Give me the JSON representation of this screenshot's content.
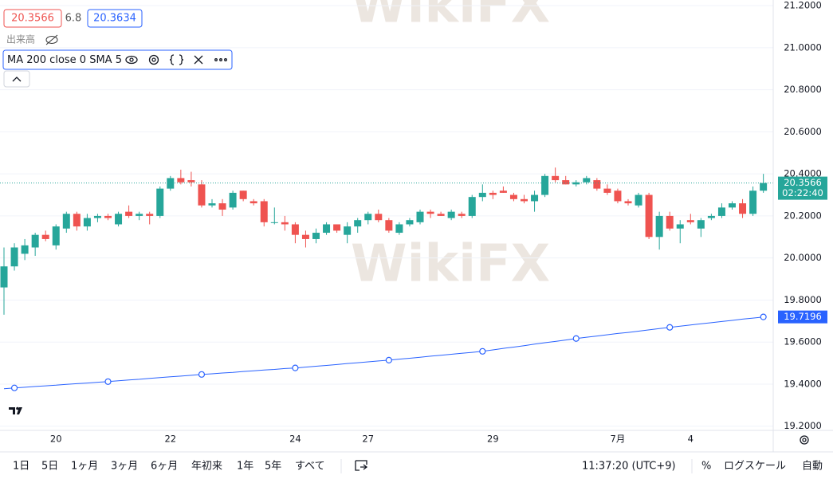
{
  "header": {
    "bid": "20.3566",
    "spread": "6.8",
    "ask": "20.3634",
    "volume": "出来高"
  },
  "chart_data": {
    "type": "candlestick",
    "categories": [
      null,
      null,
      null,
      null,
      null,
      "20",
      null,
      null,
      null,
      null,
      null,
      null,
      null,
      null,
      null,
      null,
      "22",
      null,
      null,
      null,
      null,
      null,
      null,
      null,
      null,
      null,
      null,
      null,
      "24",
      null,
      null,
      null,
      null,
      null,
      null,
      "27",
      null,
      null,
      null,
      null,
      null,
      null,
      null,
      null,
      null,
      null,
      null,
      "29",
      null,
      null,
      null,
      null,
      null,
      null,
      null,
      null,
      null,
      null,
      null,
      "7月",
      null,
      null,
      null,
      null,
      null,
      null,
      "4",
      null,
      null,
      null,
      null,
      null,
      null,
      null
    ],
    "ohlc": [
      [
        19.86,
        20.05,
        19.73,
        19.96
      ],
      [
        19.96,
        20.07,
        19.94,
        20.05
      ],
      [
        20.02,
        20.09,
        19.99,
        20.06
      ],
      [
        20.05,
        20.12,
        20.01,
        20.11
      ],
      [
        20.11,
        20.13,
        20.08,
        20.09
      ],
      [
        20.06,
        20.16,
        20.04,
        20.15
      ],
      [
        20.14,
        20.22,
        20.12,
        20.21
      ],
      [
        20.21,
        20.22,
        20.13,
        20.15
      ],
      [
        20.15,
        20.21,
        20.13,
        20.19
      ],
      [
        20.19,
        20.21,
        20.17,
        20.2
      ],
      [
        20.2,
        20.21,
        20.18,
        20.19
      ],
      [
        20.16,
        20.22,
        20.15,
        20.21
      ],
      [
        20.22,
        20.25,
        20.19,
        20.2
      ],
      [
        20.2,
        20.22,
        20.18,
        20.21
      ],
      [
        20.21,
        20.22,
        20.16,
        20.2
      ],
      [
        20.2,
        20.34,
        20.19,
        20.33
      ],
      [
        20.33,
        20.39,
        20.32,
        20.38
      ],
      [
        20.38,
        20.42,
        20.35,
        20.36
      ],
      [
        20.37,
        20.41,
        20.34,
        20.36
      ],
      [
        20.35,
        20.37,
        20.24,
        20.25
      ],
      [
        20.25,
        20.28,
        20.24,
        20.26
      ],
      [
        20.26,
        20.28,
        20.2,
        20.23
      ],
      [
        20.24,
        20.32,
        20.23,
        20.31
      ],
      [
        20.32,
        20.32,
        20.27,
        20.28
      ],
      [
        20.27,
        20.28,
        20.25,
        20.26
      ],
      [
        20.27,
        20.28,
        20.15,
        20.17
      ],
      [
        20.17,
        20.24,
        20.16,
        20.17
      ],
      [
        20.17,
        20.2,
        20.13,
        20.16
      ],
      [
        20.16,
        20.17,
        20.07,
        20.11
      ],
      [
        20.11,
        20.13,
        20.05,
        20.09
      ],
      [
        20.09,
        20.14,
        20.07,
        20.12
      ],
      [
        20.12,
        20.17,
        20.11,
        20.16
      ],
      [
        20.16,
        20.16,
        20.12,
        20.13
      ],
      [
        20.11,
        20.17,
        20.07,
        20.15
      ],
      [
        20.15,
        20.19,
        20.12,
        20.18
      ],
      [
        20.18,
        20.22,
        20.16,
        20.21
      ],
      [
        20.21,
        20.23,
        20.17,
        20.18
      ],
      [
        20.18,
        20.19,
        20.12,
        20.13
      ],
      [
        20.12,
        20.17,
        20.11,
        20.16
      ],
      [
        20.16,
        20.19,
        20.15,
        20.18
      ],
      [
        20.17,
        20.23,
        20.16,
        20.22
      ],
      [
        20.22,
        20.23,
        20.19,
        20.21
      ],
      [
        20.21,
        20.22,
        20.2,
        20.2
      ],
      [
        20.19,
        20.23,
        20.18,
        20.22
      ],
      [
        20.21,
        20.22,
        20.19,
        20.2
      ],
      [
        20.2,
        20.3,
        20.19,
        20.29
      ],
      [
        20.29,
        20.35,
        20.27,
        20.31
      ],
      [
        20.31,
        20.32,
        20.28,
        20.3
      ],
      [
        20.32,
        20.34,
        20.31,
        20.31
      ],
      [
        20.3,
        20.31,
        20.27,
        20.28
      ],
      [
        20.28,
        20.3,
        20.26,
        20.27
      ],
      [
        20.27,
        20.32,
        20.22,
        20.3
      ],
      [
        20.3,
        20.4,
        20.29,
        20.39
      ],
      [
        20.39,
        20.43,
        20.36,
        20.37
      ],
      [
        20.37,
        20.39,
        20.35,
        20.35
      ],
      [
        20.35,
        20.37,
        20.34,
        20.36
      ],
      [
        20.36,
        20.39,
        20.35,
        20.38
      ],
      [
        20.37,
        20.38,
        20.32,
        20.33
      ],
      [
        20.33,
        20.35,
        20.3,
        20.31
      ],
      [
        20.32,
        20.33,
        20.26,
        20.27
      ],
      [
        20.27,
        20.28,
        20.25,
        20.26
      ],
      [
        20.25,
        20.31,
        20.24,
        20.3
      ],
      [
        20.3,
        20.31,
        20.09,
        20.1
      ],
      [
        20.1,
        20.22,
        20.04,
        20.2
      ],
      [
        20.2,
        20.22,
        20.13,
        20.14
      ],
      [
        20.14,
        20.18,
        20.07,
        20.16
      ],
      [
        20.18,
        20.21,
        20.16,
        20.17
      ],
      [
        20.14,
        20.19,
        20.1,
        20.18
      ],
      [
        20.19,
        20.21,
        20.18,
        20.2
      ],
      [
        20.2,
        20.26,
        20.19,
        20.24
      ],
      [
        20.24,
        20.27,
        20.23,
        20.26
      ],
      [
        20.26,
        20.28,
        20.19,
        20.21
      ],
      [
        20.21,
        20.34,
        20.2,
        20.32
      ],
      [
        20.32,
        20.4,
        20.31,
        20.3566
      ]
    ],
    "up_color": "#26a69a",
    "down_color": "#ef5350",
    "ma": {
      "name": "MA 200 close 0 SMA 5",
      "color": "#2962ff",
      "values": [
        19.378,
        19.382,
        19.385,
        19.389,
        19.392,
        19.395,
        19.399,
        19.402,
        19.405,
        19.409,
        19.412,
        19.416,
        19.42,
        19.423,
        19.427,
        19.431,
        19.435,
        19.438,
        19.442,
        19.446,
        19.449,
        19.453,
        19.456,
        19.46,
        19.463,
        19.467,
        19.47,
        19.474,
        19.477,
        19.481,
        19.485,
        19.489,
        19.493,
        19.498,
        19.502,
        19.506,
        19.51,
        19.514,
        19.519,
        19.523,
        19.528,
        19.533,
        19.537,
        19.542,
        19.547,
        19.551,
        19.556,
        19.563,
        19.57,
        19.576,
        19.583,
        19.59,
        19.597,
        19.603,
        19.61,
        19.617,
        19.623,
        19.629,
        19.635,
        19.641,
        19.646,
        19.652,
        19.658,
        19.664,
        19.67,
        19.676,
        19.681,
        19.687,
        19.692,
        19.698,
        19.703,
        19.709,
        19.714,
        19.7196
      ]
    },
    "countdown": "02:22:40",
    "ylim": [
      19.18,
      21.227
    ],
    "yticks": [
      {
        "value": 21.2,
        "label": "21.2000"
      },
      {
        "value": 21.0,
        "label": "21.0000"
      },
      {
        "value": 20.8,
        "label": "20.8000"
      },
      {
        "value": 20.6,
        "label": "20.6000"
      },
      {
        "value": 20.4,
        "label": "20.4000"
      },
      {
        "value": 20.2,
        "label": "20.2000"
      },
      {
        "value": 20.0,
        "label": "20.0000"
      },
      {
        "value": 19.8,
        "label": "19.8000"
      },
      {
        "value": 19.6,
        "label": "19.6000"
      },
      {
        "value": 19.4,
        "label": "19.4000"
      },
      {
        "value": 19.2,
        "label": "19.2000"
      }
    ],
    "grid": true
  },
  "watermark": "WikiFX",
  "toolbar": {
    "ranges": [
      "1日",
      "5日",
      "1ヶ月",
      "3ヶ月",
      "6ヶ月",
      "年初来",
      "1年",
      "5年",
      "すべて"
    ],
    "time": "11:37:20 (UTC+9)",
    "percent": "%",
    "log": "ログスケール",
    "auto": "自動"
  }
}
